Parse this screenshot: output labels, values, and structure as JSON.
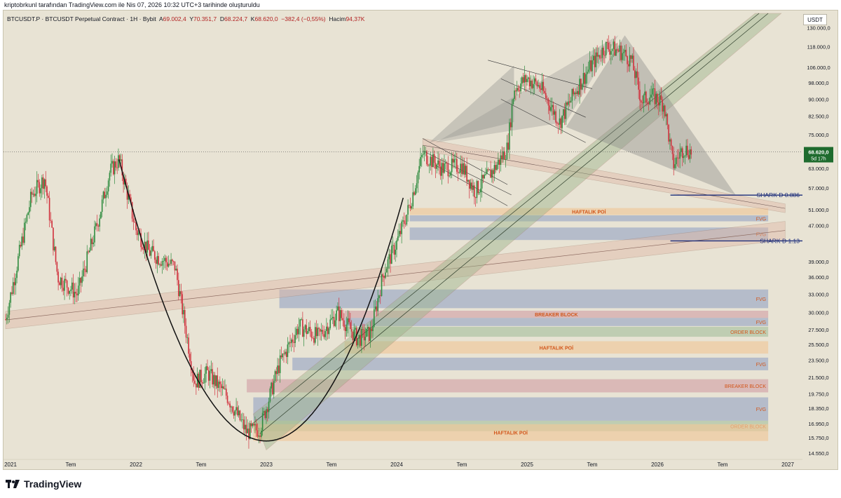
{
  "header": {
    "attribution": "kriptobrkunl tarafından TradingView.com ile Nis 07, 2026 10:32 UTC+3 tarihinde oluşturuldu"
  },
  "legend": {
    "symbol": "BTCUSDT.P · BTCUSDT Perpetual Contract · 1H · Bybit",
    "open_label": "A",
    "open": "69.002,4",
    "high_label": "Y",
    "high": "70.351,7",
    "low_label": "D",
    "low": "68.224,7",
    "close_label": "K",
    "close": "68.620,0",
    "change": "−382,4 (−0,55%)",
    "volume_label": "Hacim",
    "volume": "94,37K"
  },
  "currency": "USDT",
  "footer": {
    "brand": "TradingView"
  },
  "colors": {
    "background": "#e8e3d4",
    "up_candle": "#2e8b3e",
    "down_candle": "#d0303c",
    "fvg": "#9aa8c4",
    "breaker": "#d2a3a8",
    "order_block": "#a9c2a0",
    "poi": "#f0c89a",
    "price_tag": "#1b3a8a",
    "current_tag": "#1e6b2e"
  },
  "chart_data": {
    "type": "candlestick",
    "symbol": "BTCUSDT.P",
    "timeframe": "1H",
    "x_axis": {
      "ticks": [
        "2021",
        "Tem",
        "2022",
        "Tem",
        "2023",
        "Tem",
        "2024",
        "Tem",
        "2025",
        "Tem",
        "2026",
        "Tem",
        "2027"
      ]
    },
    "y_axis": {
      "scale": "log",
      "range": [
        14000,
        140000
      ],
      "ticks": [
        "130.000,0",
        "118.000,0",
        "106.000,0",
        "98.000,0",
        "90.000,0",
        "82.500,0",
        "75.000,0",
        "63.000,0",
        "57.000,0",
        "51.000,0",
        "47.000,0",
        "39.000,0",
        "36.000,0",
        "33.000,0",
        "30.000,0",
        "27.500,0",
        "25.500,0",
        "23.500,0",
        "21.500,0",
        "19.750,0",
        "18.350,0",
        "16.950,0",
        "15.750,0",
        "14.550,0"
      ]
    },
    "price_tags": [
      {
        "label": "SHARK D 0.886",
        "value": "54.928,0"
      },
      {
        "label": "SHARK D 1.13",
        "value": "43.395,0"
      }
    ],
    "current_price": {
      "value": "68.620,0",
      "countdown": "5d 17h"
    },
    "zone_labels": {
      "fvg": "FVG",
      "breaker": "BREAKER BLOCK",
      "order_block": "ORDER BLOCK",
      "poi_top": "HAFTALIK POİ",
      "poi_mid": "HAFTALIK POİ",
      "poi_bottom": "HAFTALIK POİ"
    }
  }
}
